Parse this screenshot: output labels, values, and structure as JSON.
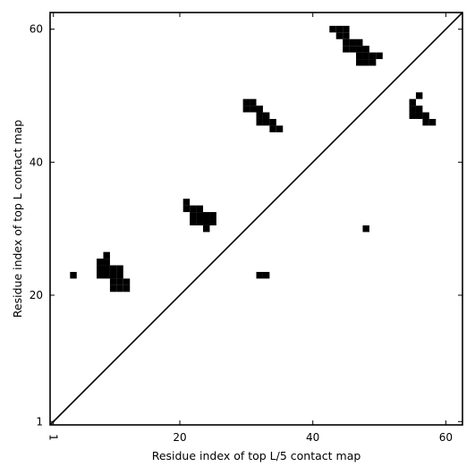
{
  "chart_data": {
    "type": "heatmap",
    "title": "",
    "xlabel": "Residue index of top L/5 contact map",
    "ylabel": "Residue index of top L contact map",
    "xlim": [
      0.5,
      62.5
    ],
    "ylim": [
      0.5,
      62.5
    ],
    "xticks": [
      1,
      20,
      40,
      60
    ],
    "yticks": [
      1,
      20,
      40,
      60
    ],
    "diagonal": true,
    "cell_color": "#000000",
    "background_color": "#ffffff",
    "upper_triangle_contacts": [
      [
        9,
        26
      ],
      [
        8,
        25
      ],
      [
        9,
        25
      ],
      [
        8,
        24
      ],
      [
        9,
        24
      ],
      [
        10,
        24
      ],
      [
        11,
        24
      ],
      [
        8,
        23
      ],
      [
        9,
        23
      ],
      [
        10,
        23
      ],
      [
        11,
        23
      ],
      [
        10,
        22
      ],
      [
        11,
        22
      ],
      [
        12,
        22
      ],
      [
        10,
        21
      ],
      [
        11,
        21
      ],
      [
        12,
        21
      ],
      [
        21,
        34
      ],
      [
        21,
        33
      ],
      [
        22,
        33
      ],
      [
        23,
        33
      ],
      [
        22,
        32
      ],
      [
        23,
        32
      ],
      [
        24,
        32
      ],
      [
        25,
        32
      ],
      [
        22,
        31
      ],
      [
        23,
        31
      ],
      [
        24,
        31
      ],
      [
        25,
        31
      ],
      [
        24,
        30
      ],
      [
        30,
        49
      ],
      [
        31,
        49
      ],
      [
        30,
        48
      ],
      [
        31,
        48
      ],
      [
        32,
        48
      ],
      [
        32,
        47
      ],
      [
        33,
        47
      ],
      [
        32,
        46
      ],
      [
        33,
        46
      ],
      [
        34,
        46
      ],
      [
        34,
        45
      ],
      [
        35,
        45
      ],
      [
        43,
        60
      ],
      [
        44,
        60
      ],
      [
        45,
        60
      ],
      [
        44,
        59
      ],
      [
        45,
        59
      ],
      [
        45,
        58
      ],
      [
        46,
        58
      ],
      [
        47,
        58
      ],
      [
        45,
        57
      ],
      [
        46,
        57
      ],
      [
        47,
        57
      ],
      [
        48,
        57
      ],
      [
        47,
        56
      ],
      [
        48,
        56
      ],
      [
        49,
        56
      ],
      [
        50,
        56
      ],
      [
        47,
        55
      ],
      [
        48,
        55
      ],
      [
        49,
        55
      ],
      [
        56,
        50
      ],
      [
        55,
        49
      ],
      [
        55,
        48
      ],
      [
        56,
        48
      ],
      [
        55,
        47
      ],
      [
        56,
        47
      ],
      [
        57,
        47
      ],
      [
        57,
        46
      ],
      [
        58,
        46
      ]
    ],
    "lower_triangle_contacts": [
      [
        4,
        23
      ],
      [
        32,
        23
      ],
      [
        33,
        23
      ],
      [
        48,
        30
      ]
    ]
  }
}
